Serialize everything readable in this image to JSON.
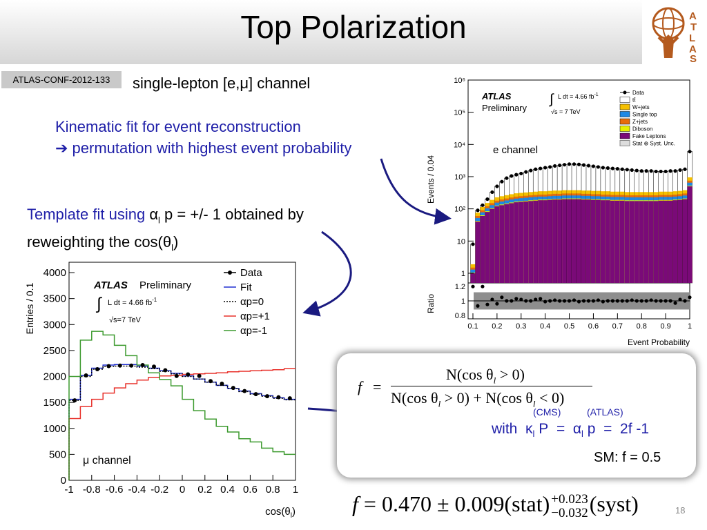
{
  "title": "Top Polarization",
  "conf_label": "ATLAS-CONF-2012-133",
  "subtitle": "single-lepton [e,μ] channel",
  "kinematic": {
    "line1": "Kinematic fit for event reconstruction",
    "line2": "permutation with highest event probability"
  },
  "template": {
    "line1_a": "Template fit using",
    "alpha": "α",
    "sub_l": "l",
    "line1_b": " p = +/- 1 obtained by",
    "line2_a": "reweighting the cos(θ",
    "line2_b": ")"
  },
  "formula_box": {
    "f_lhs": "f",
    "eq": "=",
    "numerator": "N(cos θ",
    "num_tail": " > 0)",
    "denominator_a": "N(cos θ",
    "denominator_b": " > 0) + N(cos θ",
    "denominator_c": " < 0)",
    "cms": "(CMS)",
    "atlas": "(ATLAS)",
    "with": "with",
    "kappa": "κ",
    "p_upper": " P",
    "alpha": "α",
    "p_lower": " p",
    "two_f": "2f",
    "minus_one": " -1",
    "sm": "SM: f = 0.5"
  },
  "result": {
    "f": "f",
    "text": " = 0.470 ± 0.009(stat)",
    "plus": "+0.023",
    "minus": "−0.032",
    "syst": "(syst)"
  },
  "page_number": "18",
  "colors": {
    "blue_text": "#1f1fa8",
    "arrow": "#1a1a80",
    "fake_leptons": "#7a0a78",
    "z_jets": "#e86c0a",
    "single_top": "#1e88e5",
    "w_jets": "#f5c000",
    "diboson": "#e6f000"
  },
  "chart_data": [
    {
      "type": "bar",
      "panel": "e channel",
      "xlabel": "Event Probability",
      "ylabel": "Events / 0.04",
      "ratio_label": "Ratio",
      "y_scale": "log",
      "ylim": [
        0.5,
        1000000
      ],
      "xlim": [
        0.08,
        1.0
      ],
      "xticks": [
        "0.1",
        "0.2",
        "0.3",
        "0.4",
        "0.5",
        "0.6",
        "0.7",
        "0.8",
        "0.9",
        "1"
      ],
      "yticks": [
        "1",
        "10",
        "10²",
        "10³",
        "10⁴",
        "10⁵",
        "10⁶"
      ],
      "ratio_ticks": [
        "1.2",
        "1",
        "0.8"
      ],
      "atlas": "ATLAS",
      "preliminary": "Preliminary",
      "lumi": "L dt = 4.66 fb",
      "lumi_sup": "-1",
      "sqrt_s": "s = 7 TeV",
      "legend_position": "top-right",
      "legend": [
        "Data",
        "tt̄",
        "W+jets",
        "Single top",
        "Z+jets",
        "Diboson",
        "Fake Leptons",
        "Stat ⊕ Syst. Unc."
      ],
      "bin_centers": [
        0.1,
        0.12,
        0.14,
        0.16,
        0.18,
        0.2,
        0.22,
        0.24,
        0.26,
        0.28,
        0.3,
        0.32,
        0.34,
        0.36,
        0.38,
        0.4,
        0.42,
        0.44,
        0.46,
        0.48,
        0.5,
        0.52,
        0.54,
        0.56,
        0.58,
        0.6,
        0.62,
        0.64,
        0.66,
        0.68,
        0.7,
        0.72,
        0.74,
        0.76,
        0.78,
        0.8,
        0.82,
        0.84,
        0.86,
        0.88,
        0.9,
        0.92,
        0.94,
        0.96,
        0.98,
        1.0
      ],
      "data": [
        8,
        90,
        130,
        200,
        330,
        500,
        700,
        900,
        1050,
        1150,
        1250,
        1400,
        1550,
        1700,
        1800,
        1900,
        2000,
        2150,
        2250,
        2350,
        2450,
        2450,
        2400,
        2300,
        2200,
        2100,
        2000,
        1900,
        1850,
        1800,
        1750,
        1700,
        1650,
        1600,
        1550,
        1500,
        1500,
        1500,
        1450,
        1450,
        1450,
        1500,
        1500,
        1600,
        1700,
        6000
      ],
      "fake_leptons": [
        1,
        40,
        60,
        80,
        100,
        120,
        130,
        140,
        150,
        160,
        165,
        170,
        175,
        180,
        185,
        185,
        190,
        195,
        195,
        200,
        200,
        200,
        200,
        195,
        195,
        190,
        190,
        185,
        185,
        180,
        180,
        180,
        175,
        175,
        175,
        175,
        175,
        175,
        175,
        180,
        180,
        180,
        185,
        190,
        200,
        500
      ],
      "ratio": [
        1.2,
        0.93,
        1.2,
        0.95,
        1.02,
        0.96,
        1.05,
        1.0,
        1.0,
        1.03,
        1.02,
        1.0,
        1.0,
        1.02,
        1.03,
        0.99,
        1.0,
        1.01,
        1.0,
        1.0,
        1.0,
        1.01,
        0.99,
        1.0,
        1.0,
        1.0,
        1.01,
        0.99,
        1.0,
        1.0,
        1.0,
        1.0,
        1.0,
        1.01,
        1.0,
        1.0,
        1.0,
        1.01,
        1.0,
        1.0,
        1.0,
        1.0,
        0.97,
        1.02,
        1.0,
        1.05
      ]
    },
    {
      "type": "line",
      "panel": "μ channel",
      "xlabel": "cos(θ",
      "xlabel_sub": "l",
      "xlabel_tail": ")",
      "ylabel": "Entries / 0.1",
      "atlas": "ATLAS",
      "preliminary": "Preliminary",
      "lumi": "L dt = 4.66 fb",
      "lumi_sup": "-1",
      "sqrt_s": "s=7 TeV",
      "ylim": [
        0,
        4200
      ],
      "xlim": [
        -1,
        1
      ],
      "xticks": [
        "-1",
        "-0.8",
        "-0.6",
        "-0.4",
        "-0.2",
        "0",
        "0.2",
        "0.4",
        "0.6",
        "0.8",
        "1"
      ],
      "yticks": [
        "0",
        "500",
        "1000",
        "1500",
        "2000",
        "2500",
        "3000",
        "3500",
        "4000"
      ],
      "legend_position": "top-right",
      "x": [
        -0.95,
        -0.85,
        -0.75,
        -0.65,
        -0.55,
        -0.45,
        -0.35,
        -0.25,
        -0.15,
        -0.05,
        0.05,
        0.15,
        0.25,
        0.35,
        0.45,
        0.55,
        0.65,
        0.75,
        0.85,
        0.95
      ],
      "series": [
        {
          "name": "Data",
          "values": [
            1540,
            2020,
            2140,
            2200,
            2210,
            2210,
            2220,
            2190,
            2120,
            2010,
            2040,
            2010,
            1910,
            1860,
            1780,
            1720,
            1660,
            1620,
            1600,
            1580
          ]
        },
        {
          "name": "Fit",
          "values": [
            1560,
            2020,
            2160,
            2220,
            2230,
            2230,
            2200,
            2160,
            2110,
            2060,
            2010,
            1950,
            1890,
            1830,
            1770,
            1720,
            1670,
            1630,
            1590,
            1560
          ]
        },
        {
          "name": "αp=0",
          "values": [
            1540,
            2000,
            2140,
            2190,
            2200,
            2200,
            2180,
            2150,
            2100,
            2050,
            2000,
            1950,
            1890,
            1830,
            1770,
            1710,
            1660,
            1620,
            1580,
            1550
          ]
        },
        {
          "name": "αp=+1",
          "values": [
            1190,
            1420,
            1560,
            1680,
            1780,
            1860,
            1930,
            1980,
            2010,
            2020,
            2040,
            2050,
            2060,
            2070,
            2090,
            2100,
            2110,
            2120,
            2130,
            2150
          ]
        },
        {
          "name": "αp=-1",
          "values": [
            2000,
            2700,
            2870,
            2800,
            2600,
            2400,
            2220,
            2070,
            1940,
            1820,
            1560,
            1340,
            1180,
            1040,
            930,
            800,
            740,
            620,
            550,
            500
          ]
        }
      ]
    }
  ]
}
